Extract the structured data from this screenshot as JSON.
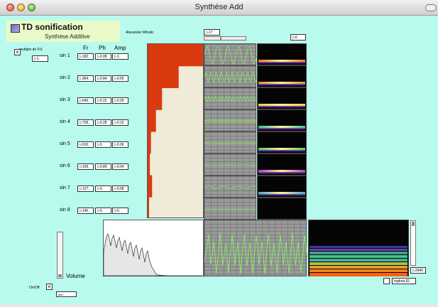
{
  "window": {
    "title": "Synthèse Add"
  },
  "header": {
    "title": "TD sonification",
    "subtitle": "Synthèse Additive",
    "author": "Alexander Mihalic"
  },
  "multiple": {
    "label": "multiple de Fr1",
    "value": "1."
  },
  "columns": {
    "fr": "Fr",
    "ph": "Ph",
    "amp": "Amp"
  },
  "sines": [
    {
      "label": "sin 1",
      "fr": "182.",
      "ph": "0.08",
      "amp": "1."
    },
    {
      "label": "sin 2",
      "fr": "364.",
      "ph": "0.84",
      "amp": "0.56"
    },
    {
      "label": "sin 3",
      "fr": "546.",
      "ph": "0.15",
      "amp": "0.26"
    },
    {
      "label": "sin 4",
      "fr": "728.",
      "ph": "0.28",
      "amp": "0.15"
    },
    {
      "label": "sin 5",
      "fr": "910.",
      "ph": "0.",
      "amp": "0.06"
    },
    {
      "label": "sin 6",
      "fr": "109.",
      "ph": "0.89",
      "amp": "0.04"
    },
    {
      "label": "sin 7",
      "fr": "127.",
      "ph": "0.",
      "amp": "0.08"
    },
    {
      "label": "sin 8",
      "fr": "145.",
      "ph": "0.",
      "amp": "0."
    }
  ],
  "amp_display": {
    "values": [
      1.0,
      0.56,
      0.26,
      0.15,
      0.06,
      0.04,
      0.08,
      0.0
    ],
    "bar_color": "#d93a10",
    "bg_color": "#f0ead8"
  },
  "scope_speed": {
    "value": "17"
  },
  "spectro_gain": {
    "value": "0"
  },
  "volume": {
    "label": "Volume",
    "level": 0.0
  },
  "onoff": {
    "label": "On/Off",
    "dac_label": "dac~"
  },
  "logfreq": {
    "label": "logfreq $1",
    "value": "2940"
  },
  "colors": {
    "background": "#b8fbee",
    "header_bg": "#e9fac8",
    "wave": "#7dff5a",
    "scope_bg": "#9a9a9a"
  },
  "icons": [
    "checkbox-x-icon",
    "app-logo-icon"
  ]
}
